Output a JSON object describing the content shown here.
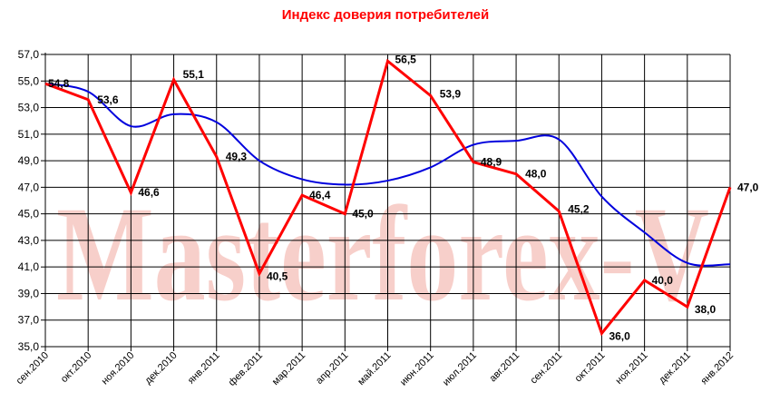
{
  "chart_data": {
    "type": "line",
    "title": "Индекс доверия потребителей",
    "xlabel": "",
    "ylabel": "",
    "ylim": [
      35.0,
      57.0
    ],
    "y_ticks": [
      "35,0",
      "37,0",
      "39,0",
      "41,0",
      "43,0",
      "45,0",
      "47,0",
      "49,0",
      "51,0",
      "53,0",
      "55,0",
      "57,0"
    ],
    "categories": [
      "сен.2010",
      "окт.2010",
      "ноя.2010",
      "дек.2010",
      "янв.2011",
      "фев.2011",
      "мар.2011",
      "апр.2011",
      "май.2011",
      "июн.2011",
      "июл.2011",
      "авг.2011",
      "сен.2011",
      "окт.2011",
      "ноя.2011",
      "дек.2011",
      "янв.2012"
    ],
    "grid": true,
    "legend": "none",
    "series": [
      {
        "color": "#ff0000",
        "values": [
          54.8,
          53.6,
          46.6,
          55.1,
          49.3,
          40.5,
          46.4,
          45.0,
          56.5,
          53.9,
          48.9,
          48.0,
          45.2,
          36.0,
          40.0,
          38.0,
          47.0
        ],
        "labels": [
          "54,8",
          "53,6",
          "46,6",
          "55,1",
          "49,3",
          "40,5",
          "46,4",
          "45,0",
          "56,5",
          "53,9",
          "48,9",
          "48,0",
          "45,2",
          "36,0",
          "40,0",
          "38,0",
          "47,0"
        ]
      },
      {
        "color": "#0000dd",
        "values": [
          54.8,
          54.2,
          51.6,
          52.5,
          51.9,
          49.0,
          47.6,
          47.2,
          47.5,
          48.5,
          50.2,
          50.5,
          50.6,
          46.3,
          43.6,
          41.3,
          41.2
        ]
      }
    ],
    "watermark": "Masterforex-V"
  }
}
